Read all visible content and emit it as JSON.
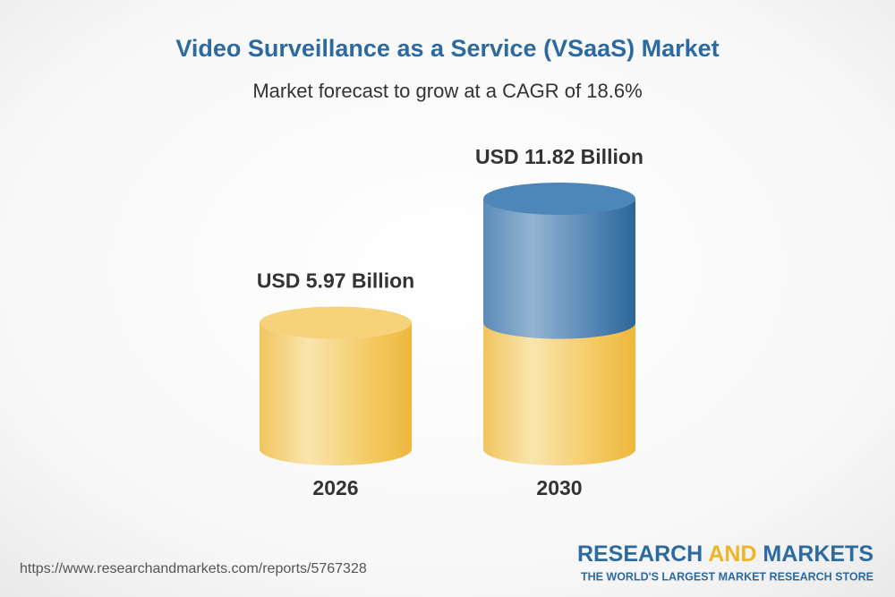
{
  "chart_data": {
    "type": "cylinder",
    "title": "Video Surveillance as a Service (VSaaS) Market",
    "subtitle": "Market forecast to grow at a CAGR of 18.6%",
    "categories": [
      "2026",
      "2030"
    ],
    "values": [
      5.97,
      11.82
    ],
    "value_labels": [
      "USD 5.97 Billion",
      "USD 11.82 Billion"
    ],
    "colors": [
      "#f2c04e",
      "#3b75a7"
    ]
  },
  "footer": {
    "source_url": "https://www.researchandmarkets.com/reports/5767328",
    "logo": {
      "research": "RESEARCH",
      "and": "AND",
      "markets": "MARKETS",
      "tagline": "THE WORLD'S LARGEST MARKET RESEARCH STORE"
    }
  }
}
